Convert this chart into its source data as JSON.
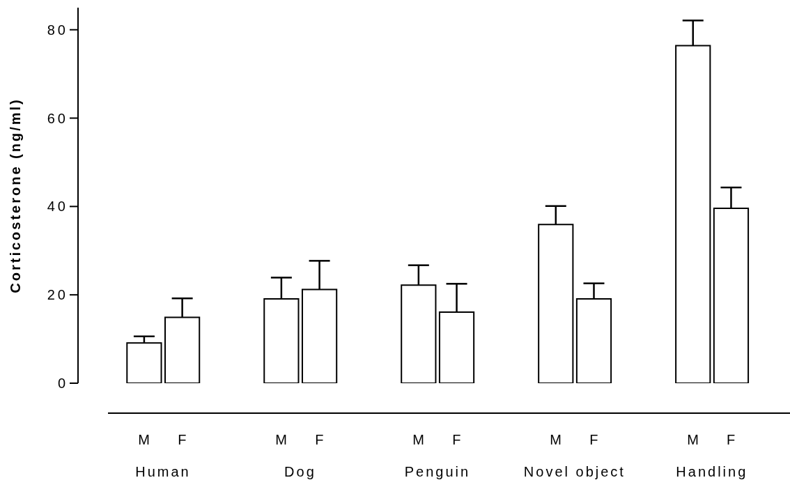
{
  "chart_data": {
    "type": "bar",
    "ylabel": "Corticosterone (ng/ml)",
    "categories": [
      "M",
      "F",
      "M",
      "F",
      "M",
      "F",
      "M",
      "F",
      "M",
      "F"
    ],
    "values": [
      9.1,
      14.9,
      19.1,
      21.2,
      22.2,
      16.1,
      35.9,
      19.1,
      76.4,
      39.6
    ],
    "errors": [
      [
        9.1,
        10.6
      ],
      [
        14.9,
        19.2
      ],
      [
        19.1,
        23.9
      ],
      [
        21.2,
        27.7
      ],
      [
        22.2,
        26.7
      ],
      [
        16.1,
        22.5
      ],
      [
        35.9,
        40.1
      ],
      [
        19.1,
        22.6
      ],
      [
        76.4,
        82.1
      ],
      [
        39.6,
        44.3
      ]
    ],
    "color": "#ffffff",
    "annotations": [
      "Human",
      "Dog",
      "Penguin",
      "Novel object",
      "Handling"
    ],
    "ylim": [
      0,
      85
    ],
    "yticks": [
      0,
      20,
      40,
      60,
      80
    ],
    "grid": false,
    "legend": false
  }
}
